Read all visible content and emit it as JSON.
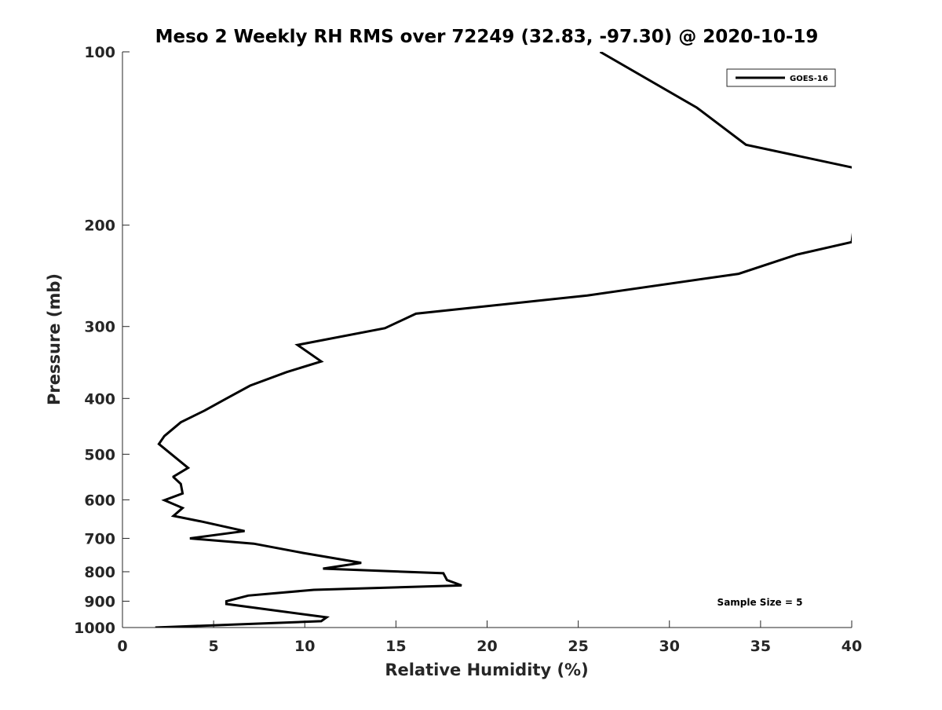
{
  "chart_data": {
    "type": "line",
    "title": "Meso 2 Weekly RH RMS over 72249 (32.83, -97.30) @ 2020-10-19",
    "xlabel": "Relative Humidity (%)",
    "ylabel": "Pressure (mb)",
    "xlim": [
      0,
      40
    ],
    "ylim": [
      100,
      1000
    ],
    "y_scale": "log",
    "y_reversed": true,
    "x_ticks": [
      "0",
      "5",
      "10",
      "15",
      "20",
      "25",
      "30",
      "35",
      "40"
    ],
    "y_ticks": [
      "100",
      "200",
      "300",
      "400",
      "500",
      "600",
      "700",
      "800",
      "900",
      "1000"
    ],
    "grid": false,
    "legend_placement": "top-right",
    "annotation": "Sample Size = 5",
    "series": [
      {
        "name": "GOES-16",
        "color": "#000000",
        "points": [
          [
            1.8,
            1000
          ],
          [
            10.9,
            975
          ],
          [
            11.2,
            960
          ],
          [
            5.7,
            910
          ],
          [
            5.7,
            900
          ],
          [
            6.9,
            880
          ],
          [
            10.5,
            860
          ],
          [
            18.6,
            845
          ],
          [
            17.8,
            827
          ],
          [
            17.6,
            805
          ],
          [
            11.0,
            790
          ],
          [
            13.1,
            772
          ],
          [
            9.9,
            742
          ],
          [
            7.2,
            715
          ],
          [
            3.7,
            700
          ],
          [
            6.7,
            680
          ],
          [
            4.4,
            655
          ],
          [
            2.8,
            640
          ],
          [
            3.3,
            620
          ],
          [
            2.3,
            601
          ],
          [
            3.3,
            585
          ],
          [
            3.2,
            563
          ],
          [
            2.8,
            548
          ],
          [
            2.8,
            547
          ],
          [
            3.6,
            528
          ],
          [
            2.0,
            480
          ],
          [
            2.3,
            465
          ],
          [
            3.2,
            440
          ],
          [
            4.5,
            420
          ],
          [
            5.9,
            397
          ],
          [
            7.0,
            380
          ],
          [
            9.0,
            360
          ],
          [
            10.9,
            345
          ],
          [
            9.6,
            323
          ],
          [
            14.4,
            302
          ],
          [
            16.1,
            285
          ],
          [
            25.5,
            265
          ],
          [
            33.8,
            243
          ],
          [
            37.0,
            225
          ],
          [
            40.0,
            214
          ],
          [
            40.5,
            160
          ],
          [
            34.2,
            145
          ],
          [
            31.5,
            125
          ],
          [
            26.2,
            100
          ]
        ]
      }
    ]
  }
}
